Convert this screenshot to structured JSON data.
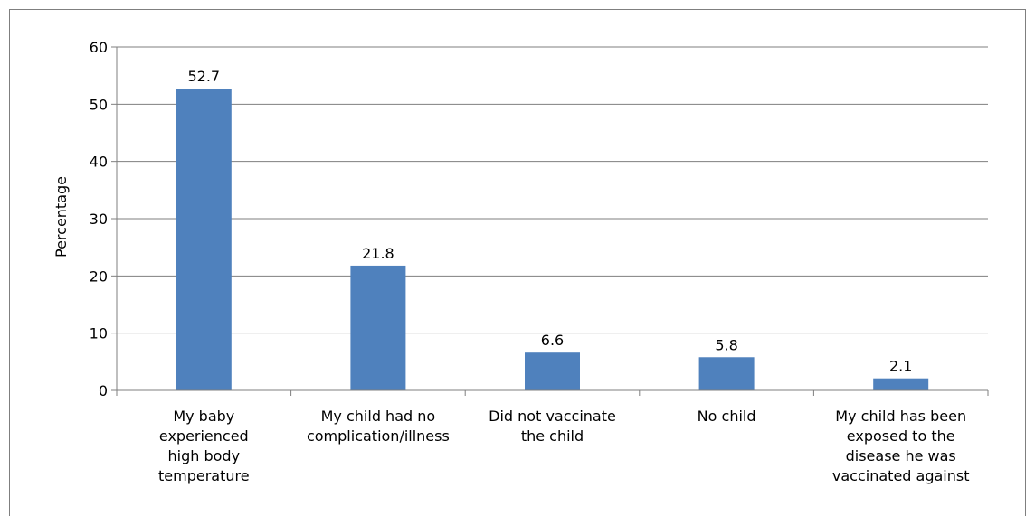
{
  "chart_data": {
    "type": "bar",
    "title": "",
    "xlabel": "",
    "ylabel": "Percentage",
    "ylim": [
      0,
      60
    ],
    "yticks": [
      0,
      10,
      20,
      30,
      40,
      50,
      60
    ],
    "grid": true,
    "categories": [
      [
        "My baby",
        "experienced",
        "high body",
        "temperature"
      ],
      [
        "My child had no",
        "complication/illness"
      ],
      [
        "Did not vaccinate",
        "the child"
      ],
      [
        "No child"
      ],
      [
        "My child has been",
        "exposed to the",
        "disease he was",
        "vaccinated against"
      ]
    ],
    "values": [
      52.7,
      21.8,
      6.6,
      5.8,
      2.1
    ],
    "value_labels": [
      "52.7",
      "21.8",
      "6.6",
      "5.8",
      "2.1"
    ],
    "bar_color": "#4f81bd",
    "grid_color": "#7f7f7f",
    "axis_color": "#7f7f7f"
  }
}
